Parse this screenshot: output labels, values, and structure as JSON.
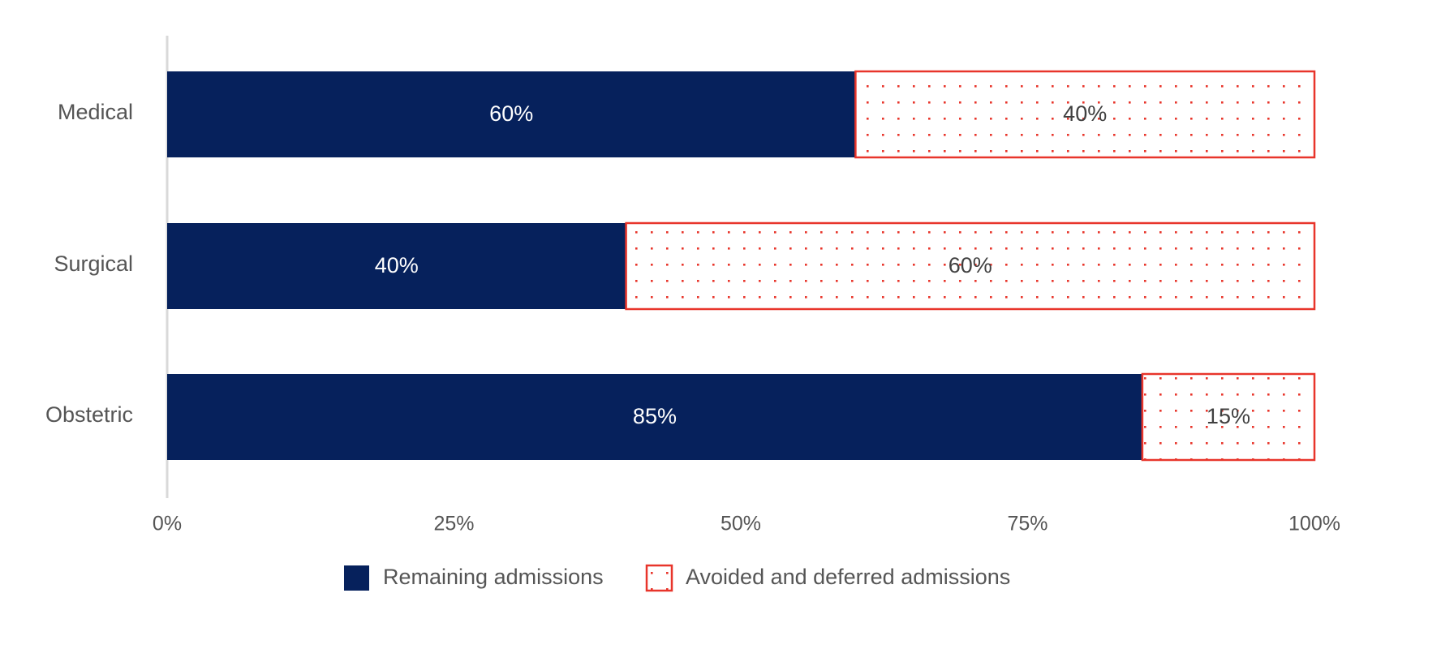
{
  "chart_data": {
    "type": "bar",
    "orientation": "horizontal",
    "stacked": true,
    "categories": [
      "Medical",
      "Surgical",
      "Obstetric"
    ],
    "series": [
      {
        "name": "Remaining admissions",
        "values": [
          60,
          40,
          85
        ],
        "color": "#06215c",
        "pattern": "solid"
      },
      {
        "name": "Avoided and deferred admissions",
        "values": [
          40,
          60,
          15
        ],
        "color": "#e8352b",
        "pattern": "dots"
      }
    ],
    "data_labels": [
      [
        "60%",
        "40%",
        "85%"
      ],
      [
        "40%",
        "60%",
        "15%"
      ]
    ],
    "xticks": [
      "0%",
      "25%",
      "50%",
      "75%",
      "100%"
    ],
    "xlim": [
      0,
      100
    ],
    "legend_position": "bottom",
    "grid": false,
    "title": "",
    "xlabel": "",
    "ylabel": ""
  }
}
